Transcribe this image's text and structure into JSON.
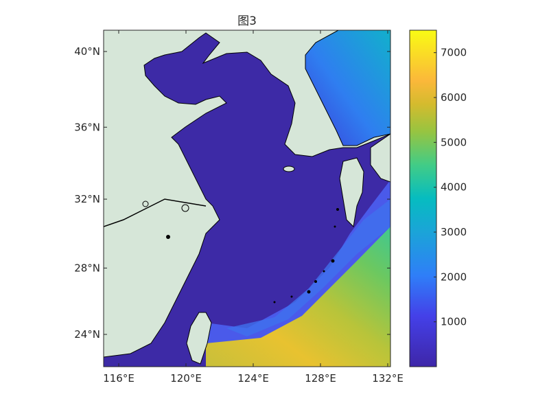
{
  "title": "图3",
  "map": {
    "extent": {
      "lon": [
        115.1,
        132.8
      ],
      "lat": [
        22.2,
        41.2
      ]
    },
    "x_ticks": [
      {
        "value": 116,
        "label": "116°E"
      },
      {
        "value": 120,
        "label": "120°E"
      },
      {
        "value": 124,
        "label": "124°E"
      },
      {
        "value": 128,
        "label": "128°E"
      },
      {
        "value": 132,
        "label": "132°E"
      }
    ],
    "y_ticks": [
      {
        "value": 40,
        "label": "40°N"
      },
      {
        "value": 36,
        "label": "36°N"
      },
      {
        "value": 32,
        "label": "32°N"
      },
      {
        "value": 28,
        "label": "28°N"
      },
      {
        "value": 24,
        "label": "24°N"
      }
    ],
    "land_color": "#d6e6d8",
    "coastline_color": "#000000"
  },
  "colorbar": {
    "colormap": "parula",
    "range": [
      0,
      7500
    ],
    "ticks": [
      {
        "value": 1000,
        "label": "1000"
      },
      {
        "value": 2000,
        "label": "2000"
      },
      {
        "value": 3000,
        "label": "3000"
      },
      {
        "value": 4000,
        "label": "4000"
      },
      {
        "value": 5000,
        "label": "5000"
      },
      {
        "value": 6000,
        "label": "6000"
      },
      {
        "value": 7000,
        "label": "7000"
      }
    ]
  }
}
